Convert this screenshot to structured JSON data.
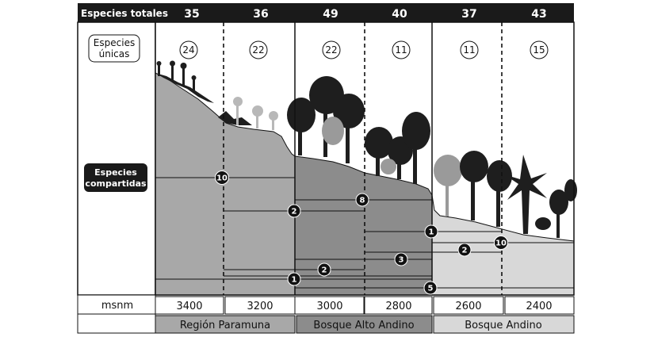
{
  "header": {
    "label": "Especies totales",
    "totals": [
      "35",
      "36",
      "49",
      "40",
      "37",
      "43"
    ]
  },
  "unique": {
    "label_line1": "Especies",
    "label_line2": "únicas",
    "values": [
      "24",
      "22",
      "22",
      "11",
      "11",
      "15"
    ]
  },
  "shared": {
    "label_line1": "Especies",
    "label_line2": "compartidas",
    "badges": [
      "10",
      "2",
      "8",
      "1",
      "2",
      "3",
      "1",
      "5",
      "10",
      "2"
    ]
  },
  "elevation": {
    "unit_label": "msnm",
    "values": [
      "3400",
      "3200",
      "3000",
      "2800",
      "2600",
      "2400"
    ]
  },
  "regions": [
    "Región Paramuna",
    "Bosque Alto Andino",
    "Bosque Andino"
  ],
  "colors": {
    "header_bg": "#1a1a1a",
    "paramuna_fill": "#a8a8a8",
    "alto_fill": "#8c8c8c",
    "andino_fill": "#d8d8d8",
    "vegetation": "#1e1e1e",
    "light_vegetation": "#9a9a9a"
  }
}
